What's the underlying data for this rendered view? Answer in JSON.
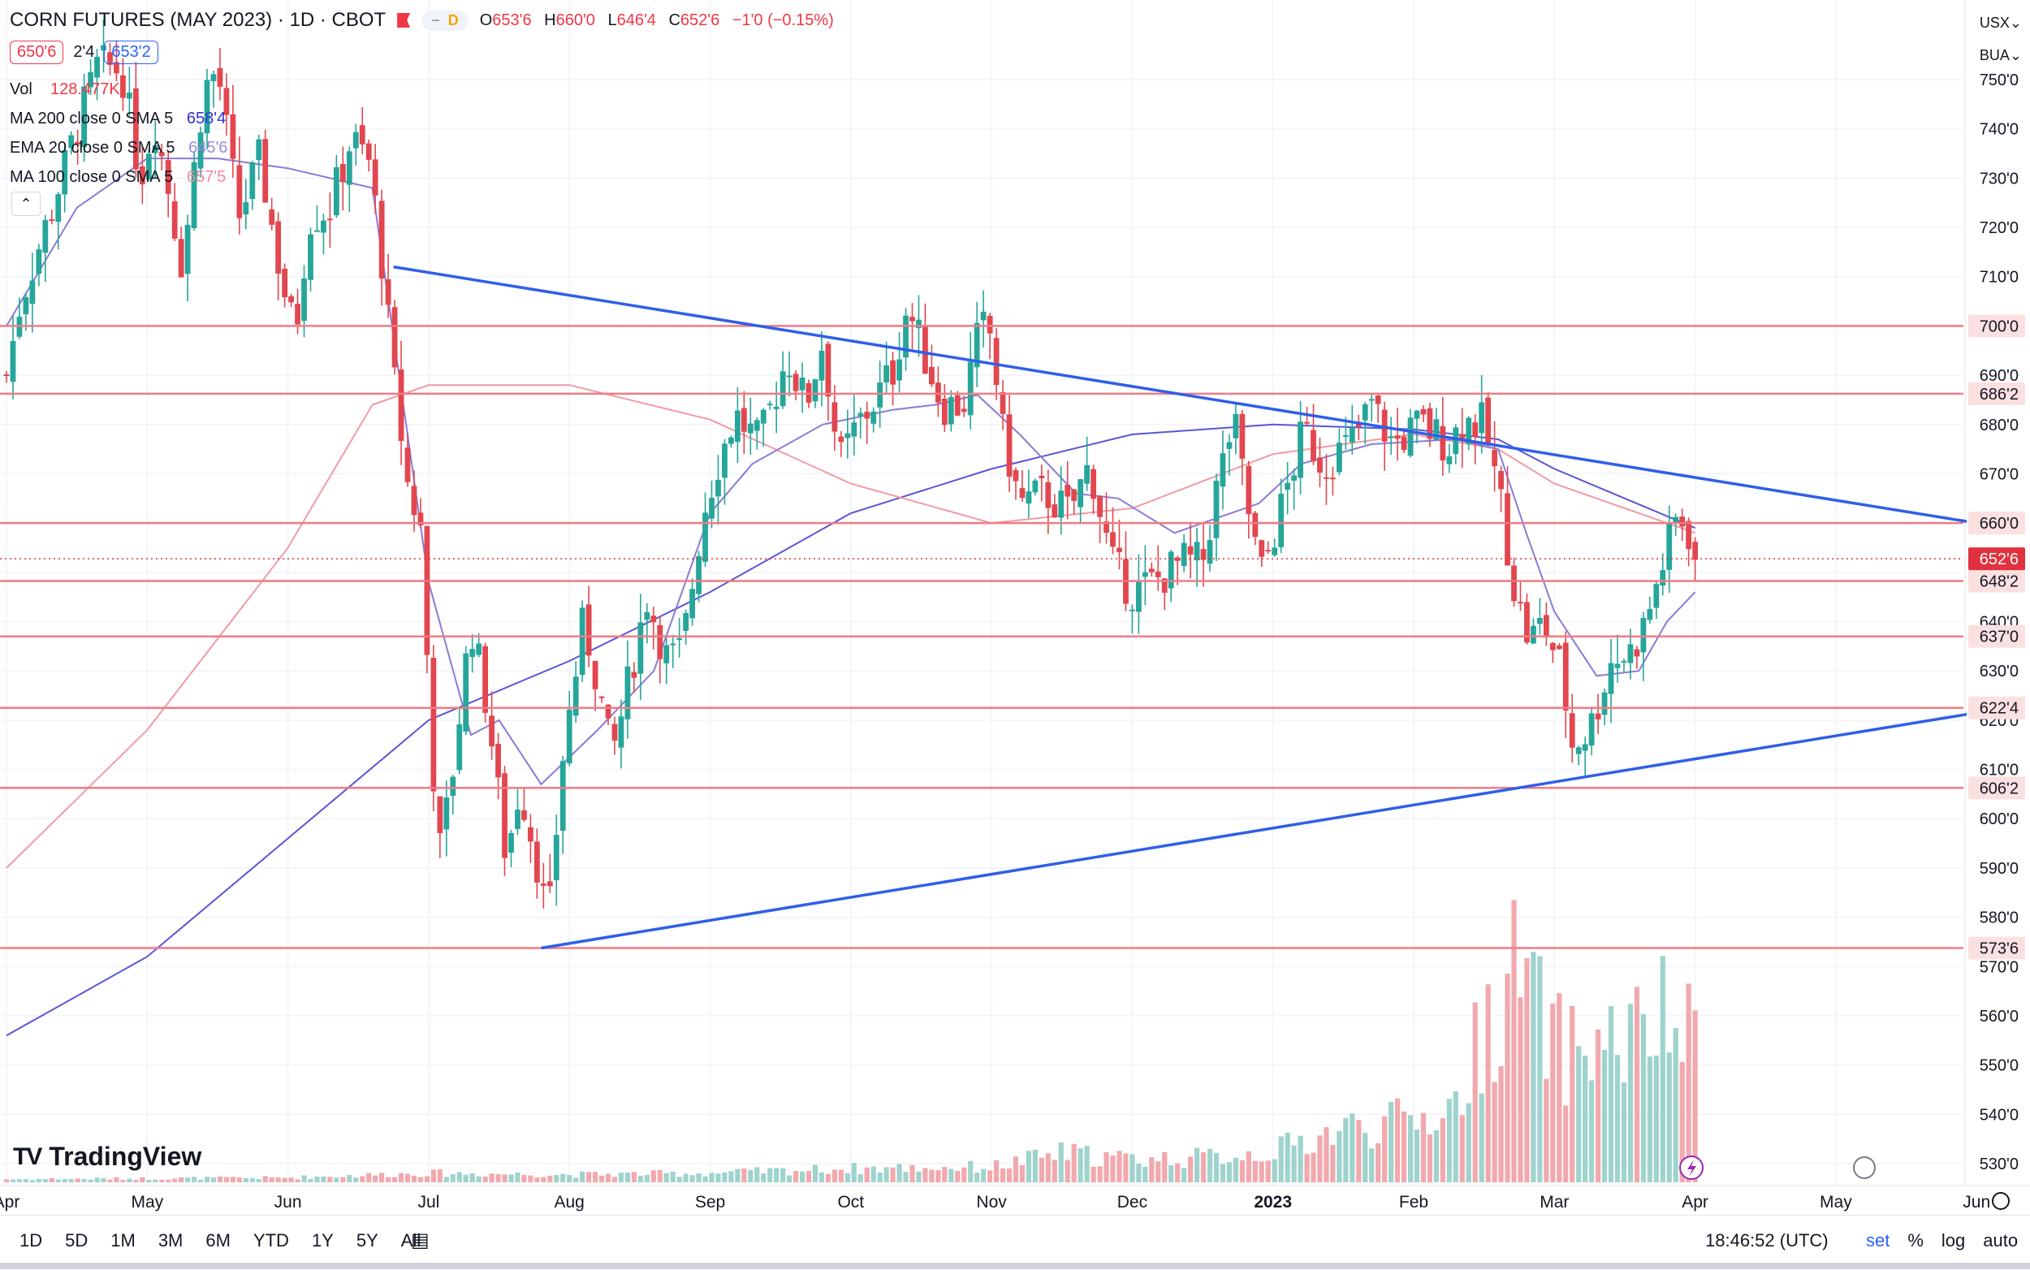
{
  "header": {
    "title": "CORN FUTURES (MAY 2023) · 1D · CBOT",
    "interval_badge": "D",
    "ohlc": [
      {
        "k": "O",
        "v": "653'6"
      },
      {
        "k": "H",
        "v": "660'0"
      },
      {
        "k": "L",
        "v": "646'4"
      },
      {
        "k": "C",
        "v": "652'6"
      },
      {
        "k": "",
        "v": "−1'0 (−0.15%)"
      }
    ]
  },
  "quote": {
    "sell": "650'6",
    "spread": "2'4",
    "buy": "653'2"
  },
  "indicators": {
    "vol_label": "Vol",
    "vol_value": "128.477K",
    "ma200_label": "MA 200 close 0 SMA 5",
    "ma200_value": "658'4",
    "ema20_label": "EMA 20 close 0 SMA 5",
    "ema20_value": "645'6",
    "ma100_label": "MA 100 close 0 SMA 5",
    "ma100_value": "657'5"
  },
  "logo": "TradingView",
  "currency": {
    "ccy": "USX",
    "unit": "BUA"
  },
  "colors": {
    "up": "#26a69a",
    "down": "#e2464f",
    "vol_up": "#9fd3cd",
    "vol_down": "#f1a9ae",
    "hline": "#f07b84",
    "trend": "#2f5fe8",
    "ma200": "#5a55d6",
    "ema20": "#8a7ad8",
    "ma100": "#f29aa4",
    "grid": "#f0f3fa",
    "price_marker": "#e0323e"
  },
  "bottom_bar": {
    "ranges": [
      "1D",
      "5D",
      "1M",
      "3M",
      "6M",
      "YTD",
      "1Y",
      "5Y",
      "All"
    ],
    "time": "18:46:52 (UTC)",
    "opt_percent": "%",
    "opt_log": "log",
    "opt_auto": "auto",
    "opt_set": "set"
  },
  "chart_data": {
    "type": "candlestick",
    "title": "CORN FUTURES (MAY 2023) · 1D · CBOT",
    "y_axis": {
      "min": 523,
      "max": 756,
      "ticks": [
        530,
        540,
        550,
        560,
        570,
        580,
        590,
        600,
        610,
        620,
        630,
        640,
        650,
        660,
        670,
        680,
        690,
        700,
        710,
        720,
        730,
        740,
        750
      ],
      "tick_labels": [
        "530'0",
        "540'0",
        "550'0",
        "560'0",
        "570'0",
        "580'0",
        "590'0",
        "600'0",
        "610'0",
        "620'0",
        "630'0",
        "640'0",
        "650'0",
        "660'0",
        "670'0",
        "680'0",
        "690'0",
        "700'0",
        "710'0",
        "720'0",
        "730'0",
        "740'0",
        "750'0"
      ]
    },
    "x_axis": {
      "labels": [
        "Apr",
        "May",
        "Jun",
        "Jul",
        "Aug",
        "Sep",
        "Oct",
        "Nov",
        "Dec",
        "2023",
        "Feb",
        "Mar",
        "Apr",
        "May",
        "Jun"
      ],
      "label_months": [
        0,
        1,
        2,
        3,
        4,
        5,
        6,
        7,
        8,
        9,
        10,
        11,
        12,
        13,
        14
      ],
      "range_months": [
        0,
        14.15
      ]
    },
    "horizontal_levels": [
      {
        "value": 700.0,
        "label": "700'0"
      },
      {
        "value": 686.25,
        "label": "686'2"
      },
      {
        "value": 660.0,
        "label": "660'0"
      },
      {
        "value": 648.25,
        "label": "648'2"
      },
      {
        "value": 637.0,
        "label": "637'0"
      },
      {
        "value": 622.5,
        "label": "622'4"
      },
      {
        "value": 606.25,
        "label": "606'2"
      },
      {
        "value": 573.75,
        "label": "573'6"
      }
    ],
    "current_price": {
      "value": 652.75,
      "label": "652'6"
    },
    "trendlines": [
      {
        "from": [
          2.75,
          712
        ],
        "to": [
          14.0,
          660
        ]
      },
      {
        "from": [
          3.8,
          573.75
        ],
        "to": [
          14.0,
          621.5
        ]
      }
    ],
    "price_anchors": [
      [
        0.0,
        690
      ],
      [
        0.1,
        705
      ],
      [
        0.3,
        722
      ],
      [
        0.5,
        740
      ],
      [
        0.65,
        753
      ],
      [
        0.82,
        752
      ],
      [
        0.95,
        730
      ],
      [
        1.05,
        742
      ],
      [
        1.15,
        728
      ],
      [
        1.25,
        712
      ],
      [
        1.4,
        748
      ],
      [
        1.5,
        752
      ],
      [
        1.65,
        722
      ],
      [
        1.8,
        734
      ],
      [
        1.95,
        710
      ],
      [
        2.05,
        698
      ],
      [
        2.15,
        722
      ],
      [
        2.3,
        724
      ],
      [
        2.45,
        738
      ],
      [
        2.58,
        733
      ],
      [
        2.65,
        718
      ],
      [
        2.75,
        690
      ],
      [
        2.85,
        668
      ],
      [
        2.95,
        658
      ],
      [
        3.0,
        626
      ],
      [
        3.07,
        592
      ],
      [
        3.15,
        605
      ],
      [
        3.3,
        640
      ],
      [
        3.42,
        622
      ],
      [
        3.55,
        592
      ],
      [
        3.65,
        607
      ],
      [
        3.78,
        590
      ],
      [
        3.85,
        578
      ],
      [
        3.95,
        612
      ],
      [
        4.1,
        640
      ],
      [
        4.2,
        628
      ],
      [
        4.3,
        612
      ],
      [
        4.4,
        625
      ],
      [
        4.55,
        645
      ],
      [
        4.7,
        632
      ],
      [
        4.8,
        634
      ],
      [
        4.95,
        662
      ],
      [
        5.05,
        672
      ],
      [
        5.18,
        682
      ],
      [
        5.35,
        676
      ],
      [
        5.55,
        694
      ],
      [
        5.68,
        684
      ],
      [
        5.8,
        697
      ],
      [
        5.92,
        672
      ],
      [
        6.05,
        680
      ],
      [
        6.15,
        684
      ],
      [
        6.3,
        691
      ],
      [
        6.4,
        704
      ],
      [
        6.55,
        692
      ],
      [
        6.65,
        684
      ],
      [
        6.8,
        684
      ],
      [
        6.92,
        700
      ],
      [
        7.0,
        698
      ],
      [
        7.08,
        678
      ],
      [
        7.2,
        664
      ],
      [
        7.38,
        666
      ],
      [
        7.55,
        662
      ],
      [
        7.7,
        672
      ],
      [
        7.85,
        652
      ],
      [
        8.0,
        646
      ],
      [
        8.15,
        648
      ],
      [
        8.35,
        652
      ],
      [
        8.5,
        652
      ],
      [
        8.6,
        667
      ],
      [
        8.72,
        681
      ],
      [
        8.85,
        658
      ],
      [
        8.92,
        650
      ],
      [
        9.05,
        662
      ],
      [
        9.22,
        679
      ],
      [
        9.35,
        672
      ],
      [
        9.55,
        676
      ],
      [
        9.7,
        684
      ],
      [
        9.85,
        676
      ],
      [
        10.05,
        680
      ],
      [
        10.25,
        676
      ],
      [
        10.35,
        681
      ],
      [
        10.5,
        680
      ],
      [
        10.62,
        664
      ],
      [
        10.72,
        646
      ],
      [
        10.82,
        636
      ],
      [
        10.92,
        640
      ],
      [
        11.05,
        630
      ],
      [
        11.12,
        615
      ],
      [
        11.25,
        618
      ],
      [
        11.4,
        632
      ],
      [
        11.55,
        634
      ],
      [
        11.65,
        640
      ],
      [
        11.75,
        650
      ],
      [
        11.88,
        662
      ],
      [
        11.97,
        657
      ],
      [
        12.0,
        653
      ]
    ],
    "volume_anchors": [
      [
        0.0,
        0.2
      ],
      [
        2.0,
        0.3
      ],
      [
        3.0,
        0.6
      ],
      [
        4.0,
        0.5
      ],
      [
        5.0,
        0.6
      ],
      [
        6.0,
        0.9
      ],
      [
        7.0,
        1.0
      ],
      [
        7.5,
        1.9
      ],
      [
        8.0,
        1.5
      ],
      [
        8.5,
        1.6
      ],
      [
        9.0,
        2.0
      ],
      [
        9.5,
        3.5
      ],
      [
        10.0,
        4.0
      ],
      [
        10.3,
        5.0
      ],
      [
        10.5,
        10.0
      ],
      [
        10.75,
        14.0
      ],
      [
        10.9,
        10.5
      ],
      [
        11.05,
        8.5
      ],
      [
        11.3,
        9.0
      ],
      [
        11.55,
        9.2
      ],
      [
        11.75,
        10.5
      ],
      [
        12.0,
        9.0
      ]
    ],
    "moving_averages": {
      "ma200": [
        [
          0.0,
          556
        ],
        [
          1.0,
          572
        ],
        [
          2.0,
          596
        ],
        [
          3.0,
          620
        ],
        [
          4.0,
          632
        ],
        [
          5.0,
          646
        ],
        [
          6.0,
          662
        ],
        [
          7.0,
          671
        ],
        [
          8.0,
          678
        ],
        [
          9.0,
          680
        ],
        [
          10.0,
          679
        ],
        [
          10.6,
          677
        ],
        [
          11.0,
          671
        ],
        [
          11.5,
          665
        ],
        [
          12.0,
          659
        ]
      ],
      "ma100": [
        [
          0.0,
          590
        ],
        [
          1.0,
          618
        ],
        [
          2.0,
          655
        ],
        [
          2.6,
          684
        ],
        [
          3.0,
          688
        ],
        [
          4.0,
          688
        ],
        [
          5.0,
          681
        ],
        [
          6.0,
          668
        ],
        [
          7.0,
          660
        ],
        [
          8.0,
          663
        ],
        [
          9.0,
          674
        ],
        [
          10.0,
          678
        ],
        [
          10.6,
          675
        ],
        [
          11.0,
          668
        ],
        [
          11.5,
          663
        ],
        [
          12.0,
          658
        ]
      ],
      "ema20": [
        [
          0.0,
          700
        ],
        [
          0.5,
          724
        ],
        [
          1.0,
          734
        ],
        [
          1.5,
          734
        ],
        [
          2.0,
          732
        ],
        [
          2.6,
          728
        ],
        [
          3.0,
          648
        ],
        [
          3.3,
          617
        ],
        [
          3.5,
          620
        ],
        [
          3.8,
          607
        ],
        [
          4.2,
          618
        ],
        [
          4.6,
          630
        ],
        [
          5.0,
          662
        ],
        [
          5.3,
          672
        ],
        [
          5.8,
          680
        ],
        [
          6.3,
          683
        ],
        [
          6.6,
          684
        ],
        [
          6.9,
          686
        ],
        [
          7.2,
          678
        ],
        [
          7.6,
          666
        ],
        [
          7.9,
          665
        ],
        [
          8.3,
          658
        ],
        [
          8.6,
          661
        ],
        [
          8.9,
          664
        ],
        [
          9.2,
          672
        ],
        [
          9.7,
          676
        ],
        [
          10.3,
          677
        ],
        [
          10.6,
          675
        ],
        [
          10.8,
          658
        ],
        [
          11.0,
          642
        ],
        [
          11.3,
          629
        ],
        [
          11.6,
          630
        ],
        [
          11.8,
          640
        ],
        [
          12.0,
          646
        ]
      ]
    }
  }
}
